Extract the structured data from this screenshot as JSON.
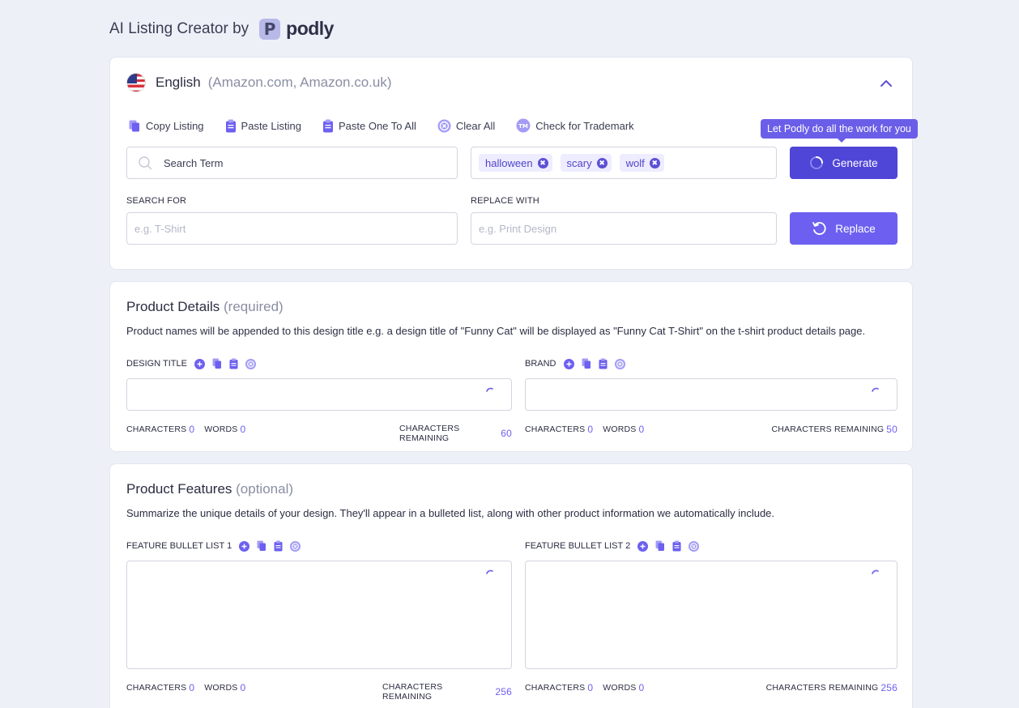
{
  "header": {
    "title": "AI Listing Creator by",
    "logo_text": "podly",
    "logo_mark": "P"
  },
  "language": {
    "name": "English",
    "marketplaces": "(Amazon.com, Amazon.co.uk)"
  },
  "toolbar": {
    "copy": "Copy Listing",
    "paste": "Paste Listing",
    "paste_all": "Paste One To All",
    "clear": "Clear All",
    "trademark": "Check for Trademark",
    "trademark_badge": "TM"
  },
  "tooltip": "Let Podly do all the work for you",
  "search": {
    "placeholder": "Search Term"
  },
  "tags": [
    "halloween",
    "scary",
    "wolf"
  ],
  "buttons": {
    "generate": "Generate",
    "replace": "Replace"
  },
  "search_replace": {
    "search_label": "SEARCH FOR",
    "search_placeholder": "e.g. T-Shirt",
    "replace_label": "REPLACE WITH",
    "replace_placeholder": "e.g. Print Design"
  },
  "product_details": {
    "title": "Product Details",
    "qualifier": "(required)",
    "description": "Product names will be appended to this design title e.g. a design title of \"Funny Cat\" will be displayed as \"Funny Cat T-Shirt\" on the t-shirt product details page.",
    "fields": [
      {
        "label": "DESIGN TITLE",
        "characters": "0",
        "words": "0",
        "remaining": "60"
      },
      {
        "label": "BRAND",
        "characters": "0",
        "words": "0",
        "remaining": "50"
      }
    ]
  },
  "product_features": {
    "title": "Product Features",
    "qualifier": "(optional)",
    "description": "Summarize the unique details of your design. They'll appear in a bulleted list, along with other product information we automatically include.",
    "fields": [
      {
        "label": "FEATURE BULLET LIST 1",
        "characters": "0",
        "words": "0",
        "remaining": "256"
      },
      {
        "label": "FEATURE BULLET LIST 2",
        "characters": "0",
        "words": "0",
        "remaining": "256"
      }
    ]
  },
  "stats_labels": {
    "characters": "CHARACTERS",
    "words": "WORDS",
    "remaining": "CHARACTERS REMAINING"
  },
  "colors": {
    "accent": "#6d60f0",
    "accent_dark": "#4f45d6",
    "background": "#eef0f8"
  }
}
